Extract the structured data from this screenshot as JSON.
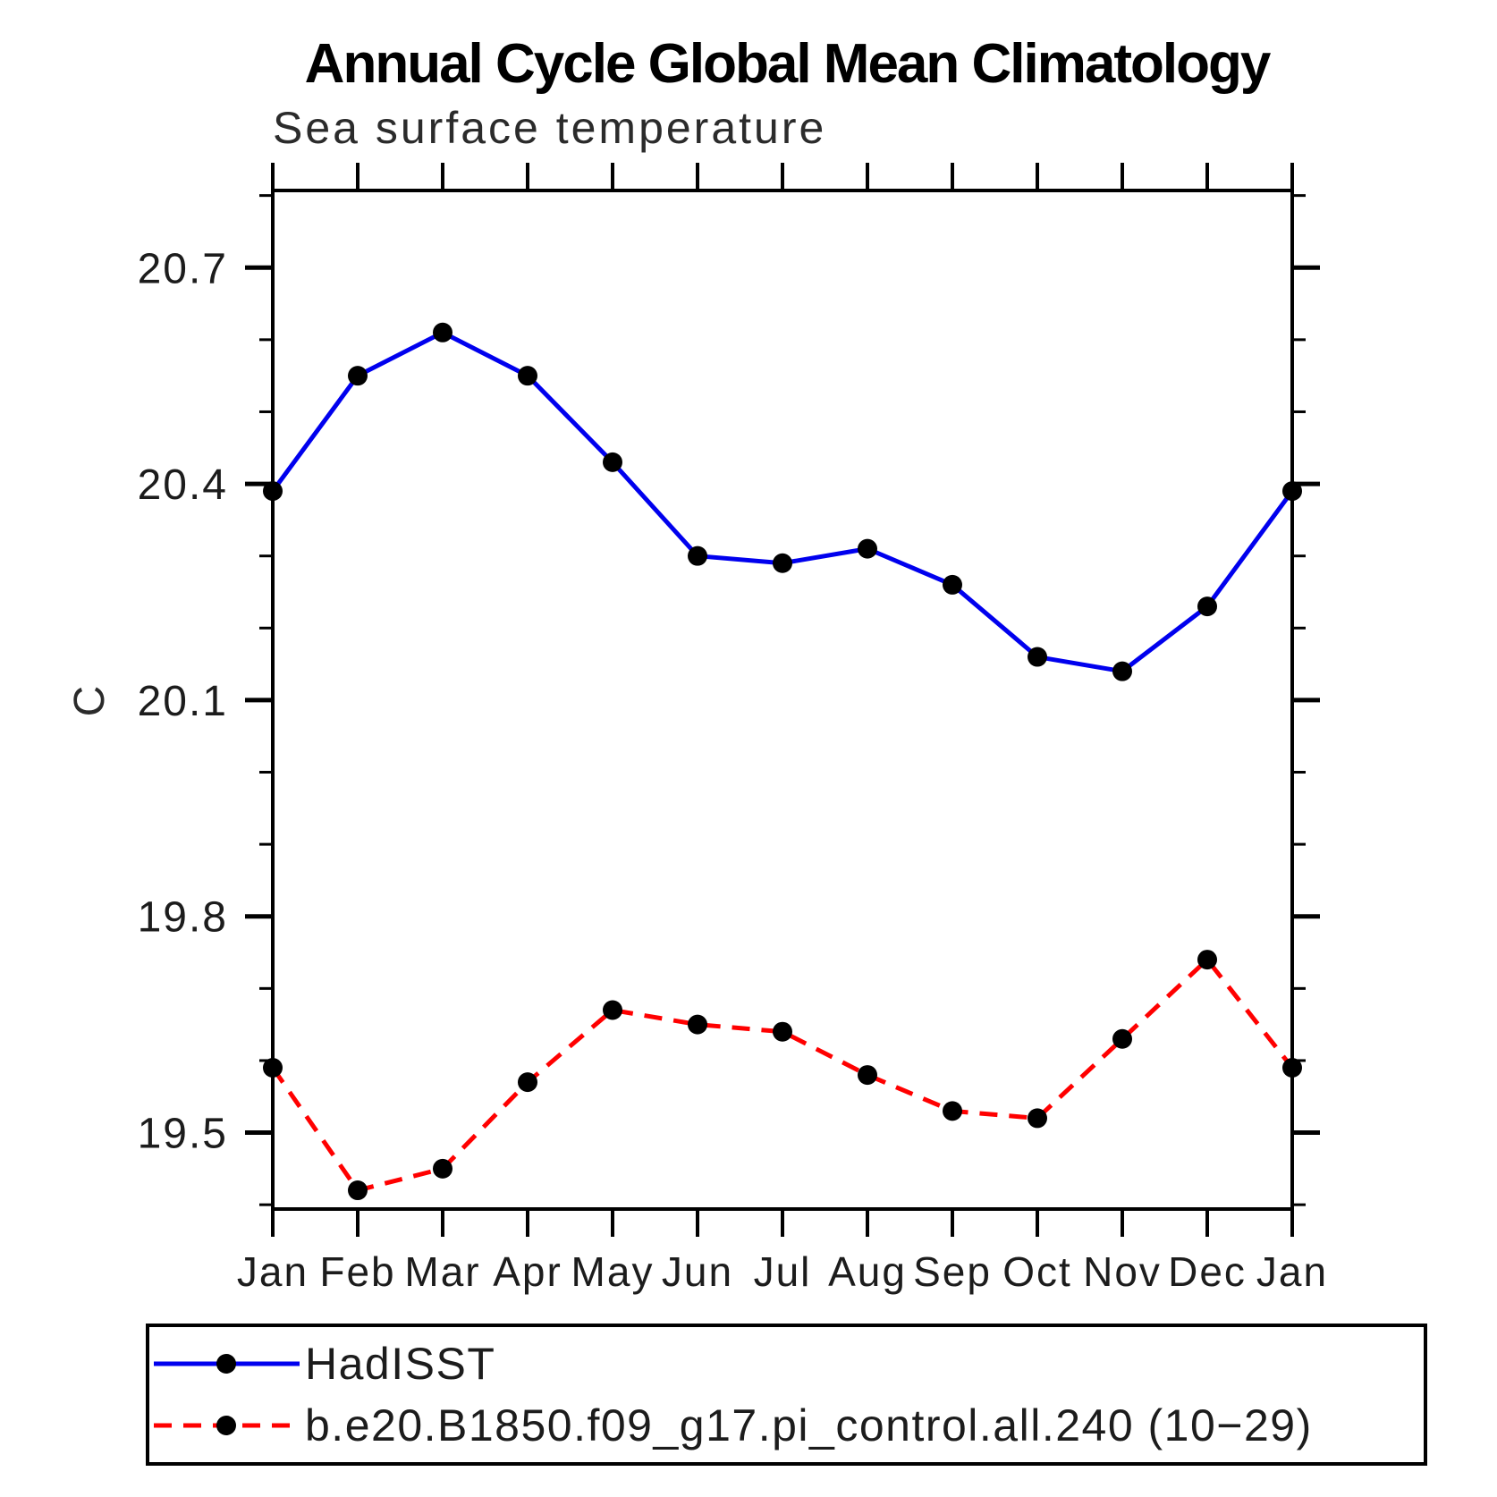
{
  "title": "Annual Cycle Global Mean Climatology",
  "subtitle": "Sea surface temperature",
  "y_axis_label": "C",
  "legend": {
    "items": [
      {
        "label": "HadISST",
        "color": "#0000ee",
        "dash": "solid"
      },
      {
        "label": "b.e20.B1850.f09_g17.pi_control.all.240 (10−29)",
        "color": "#ff0000",
        "dash": "dashed"
      }
    ]
  },
  "chart_data": {
    "type": "line",
    "title": "Annual Cycle Global Mean Climatology",
    "subtitle": "Sea surface temperature",
    "xlabel": "",
    "ylabel": "C",
    "categories": [
      "Jan",
      "Feb",
      "Mar",
      "Apr",
      "May",
      "Jun",
      "Jul",
      "Aug",
      "Sep",
      "Oct",
      "Nov",
      "Dec",
      "Jan"
    ],
    "ylim": [
      19.394,
      20.807
    ],
    "y_ticks_major": [
      19.5,
      19.8,
      20.1,
      20.4,
      20.7
    ],
    "y_minor_step": 0.1,
    "grid": false,
    "legend_position": "bottom",
    "marker": {
      "shape": "circle",
      "color": "#000000",
      "radius": 11
    },
    "series": [
      {
        "name": "HadISST",
        "color": "#0000ee",
        "dash": "solid",
        "values": [
          20.39,
          20.55,
          20.61,
          20.55,
          20.43,
          20.3,
          20.29,
          20.31,
          20.26,
          20.16,
          20.14,
          20.23,
          20.39
        ]
      },
      {
        "name": "b.e20.B1850.f09_g17.pi_control.all.240 (10−29)",
        "color": "#ff0000",
        "dash": "dashed",
        "values": [
          19.59,
          19.42,
          19.45,
          19.57,
          19.67,
          19.65,
          19.64,
          19.58,
          19.53,
          19.52,
          19.63,
          19.74,
          19.59
        ]
      }
    ]
  }
}
